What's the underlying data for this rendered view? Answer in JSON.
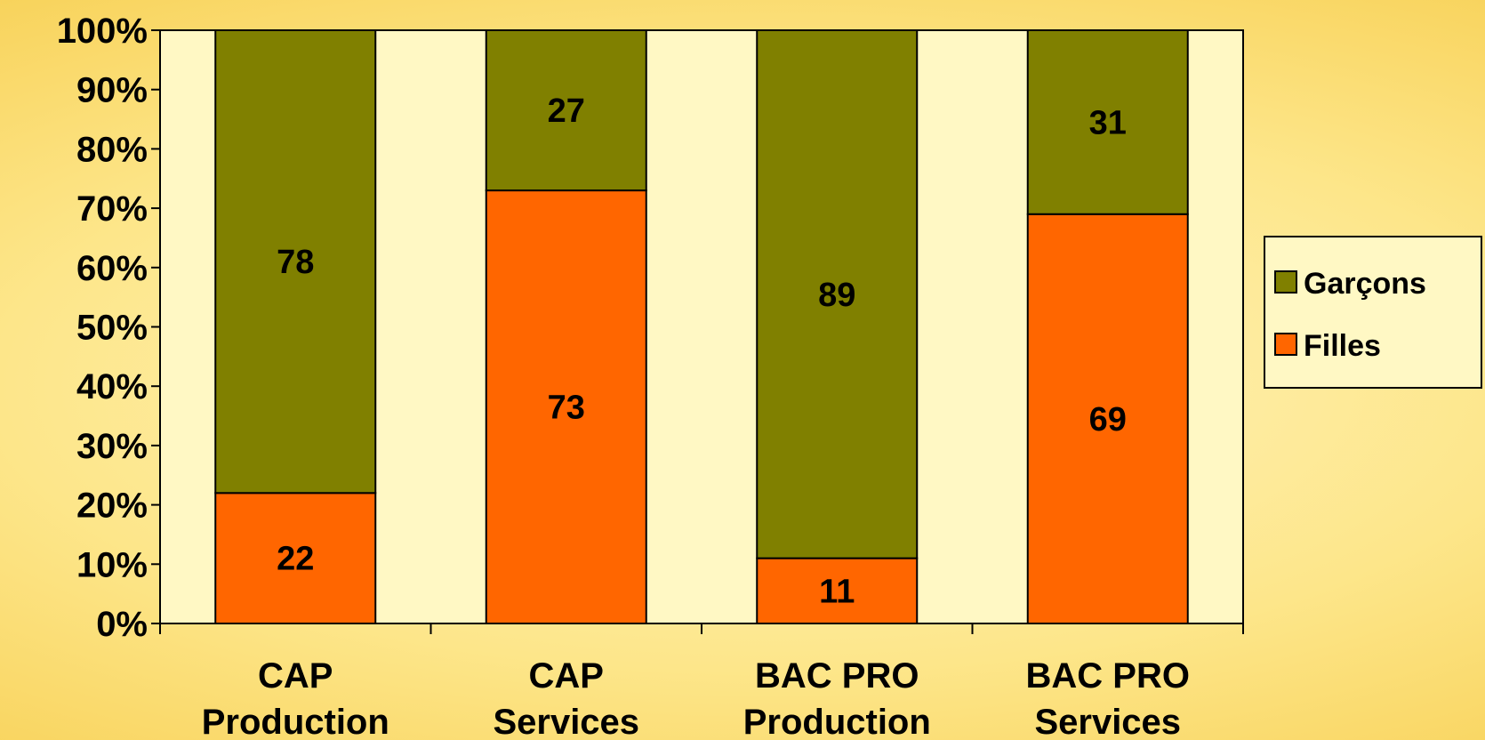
{
  "chart_data": {
    "type": "bar",
    "stacked": true,
    "percent": true,
    "title": "",
    "xlabel": "",
    "ylabel": "",
    "ylim": [
      0,
      100
    ],
    "yticks": [
      "0%",
      "10%",
      "20%",
      "30%",
      "40%",
      "50%",
      "60%",
      "70%",
      "80%",
      "90%",
      "100%"
    ],
    "categories": [
      [
        "CAP",
        "Production"
      ],
      [
        "CAP",
        "Services"
      ],
      [
        "BAC PRO",
        "Production"
      ],
      [
        "BAC PRO",
        "Services"
      ]
    ],
    "series": [
      {
        "name": "Filles",
        "color": "#ff6600",
        "values": [
          22,
          73,
          11,
          69
        ],
        "labels": [
          "22",
          "73",
          "11",
          "69"
        ]
      },
      {
        "name": "Garçons",
        "color": "#808000",
        "values": [
          78,
          27,
          89,
          31
        ],
        "labels": [
          "78",
          "27",
          "89",
          "31"
        ]
      }
    ],
    "legend": {
      "position": "right",
      "order": [
        "Garçons",
        "Filles"
      ]
    },
    "plot_background": "#fff8c4",
    "grid": false
  }
}
